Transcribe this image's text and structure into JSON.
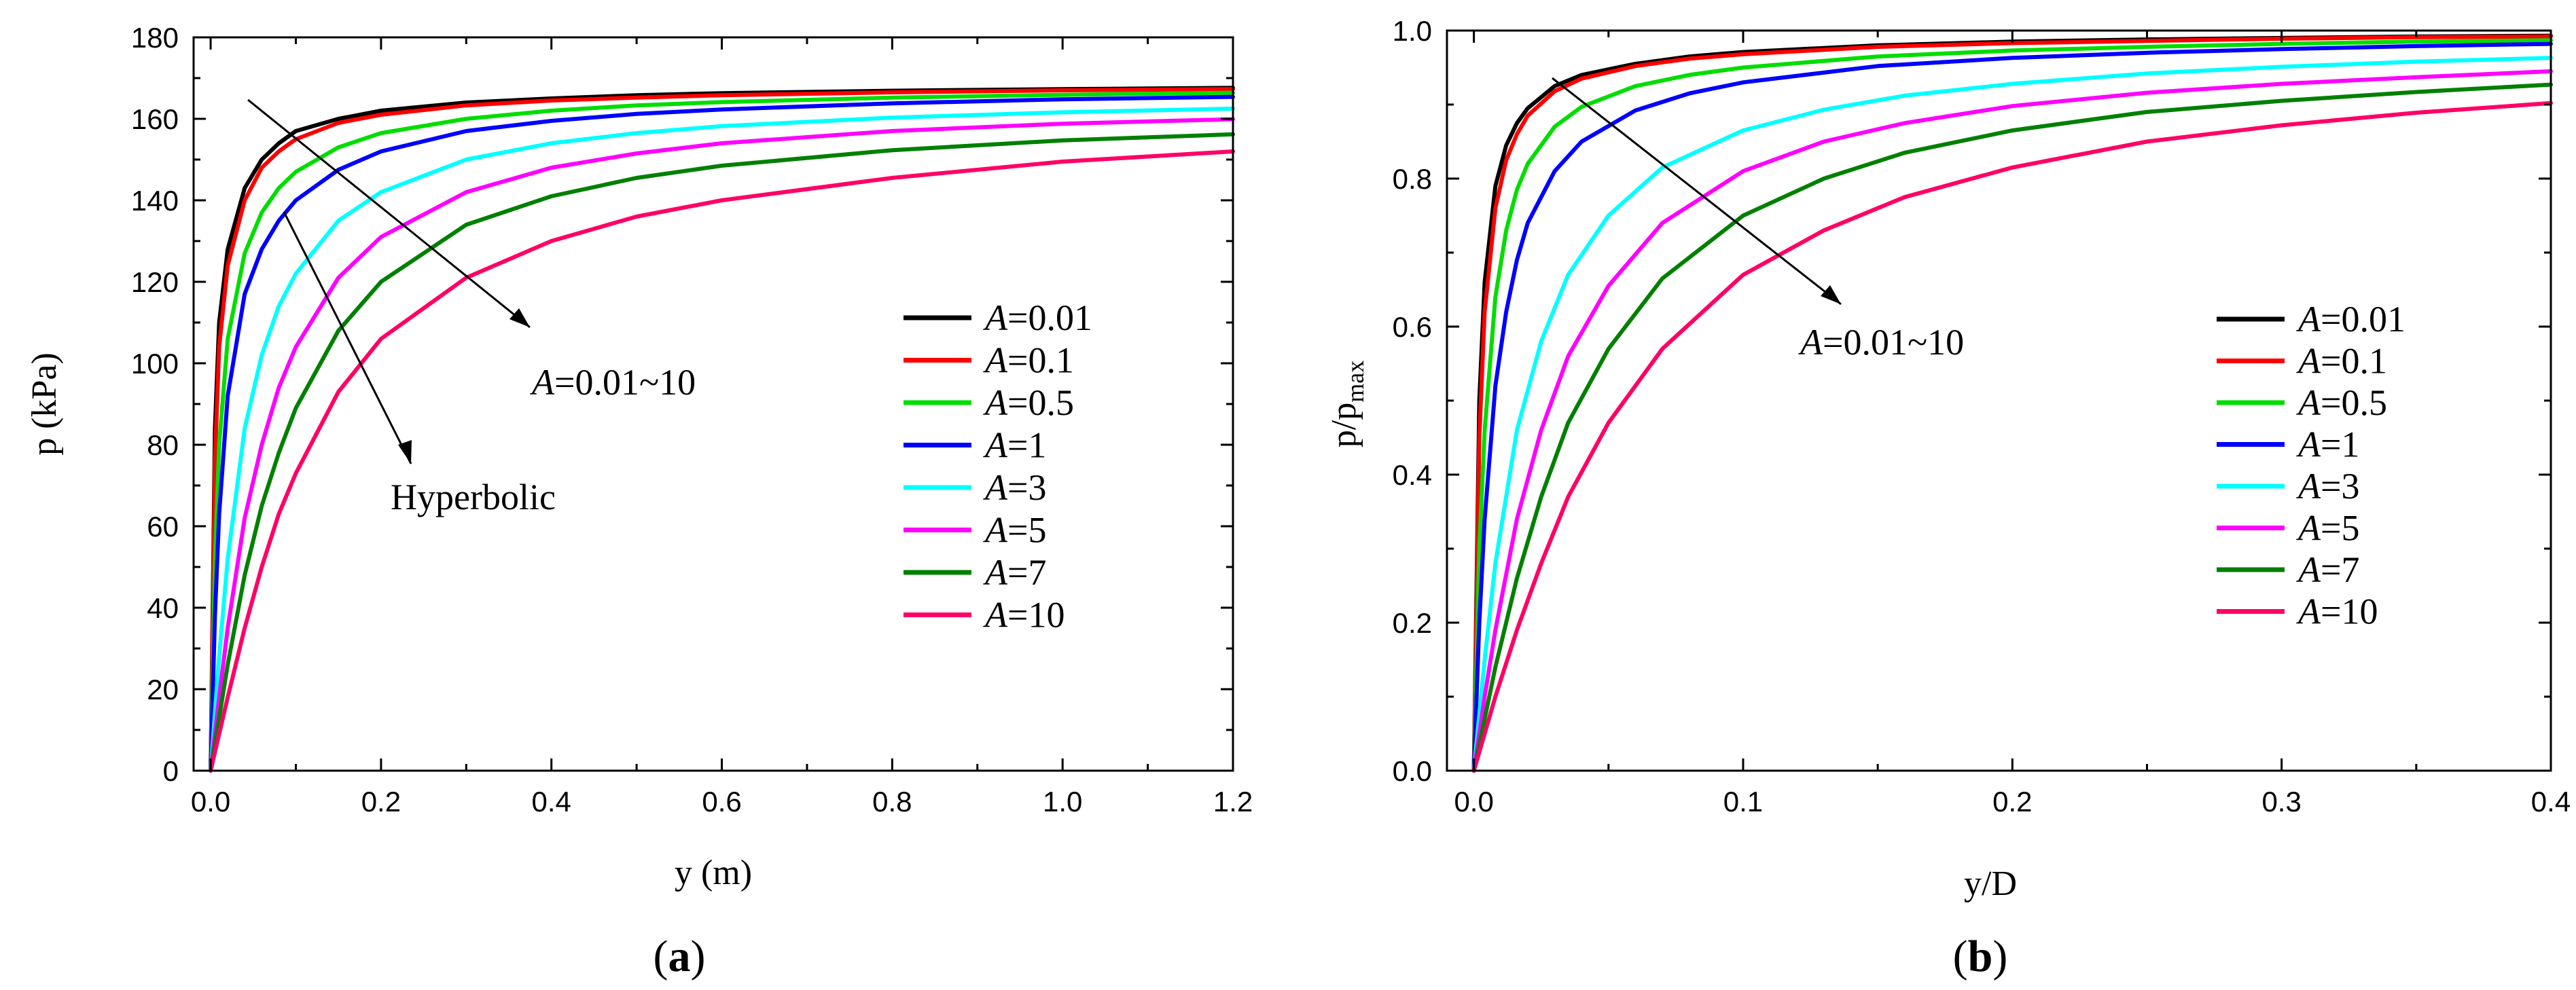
{
  "chart_data": [
    {
      "type": "line",
      "panel_label": "a",
      "xlabel": "y (m)",
      "ylabel": "p (kPa)",
      "xlim": [
        -0.02,
        1.2
      ],
      "ylim": [
        0,
        180
      ],
      "xticks": [
        0.0,
        0.2,
        0.4,
        0.6,
        0.8,
        1.0,
        1.2
      ],
      "xtick_labels": [
        "0.0",
        "0.2",
        "0.4",
        "0.6",
        "0.8",
        "1.0",
        "1.2"
      ],
      "yticks": [
        0,
        20,
        40,
        60,
        80,
        100,
        120,
        140,
        160,
        180
      ],
      "ytick_labels": [
        "0",
        "20",
        "40",
        "60",
        "80",
        "100",
        "120",
        "140",
        "160",
        "180"
      ],
      "legend_position": "right",
      "legend_prefix": "A",
      "series": [
        {
          "name": "=0.01",
          "color": "#000000",
          "x": [
            0,
            0.005,
            0.01,
            0.02,
            0.04,
            0.06,
            0.08,
            0.1,
            0.15,
            0.2,
            0.3,
            0.4,
            0.5,
            0.6,
            0.8,
            1.0,
            1.2
          ],
          "y": [
            0,
            84,
            110,
            128,
            143,
            150,
            154,
            157,
            160,
            162,
            164,
            165,
            165.8,
            166.3,
            166.9,
            167.3,
            167.6
          ]
        },
        {
          "name": "=0.1",
          "color": "#ff0000",
          "x": [
            0,
            0.005,
            0.01,
            0.02,
            0.04,
            0.06,
            0.08,
            0.1,
            0.15,
            0.2,
            0.3,
            0.4,
            0.5,
            0.6,
            0.8,
            1.0,
            1.2
          ],
          "y": [
            0,
            76,
            104,
            124,
            140,
            148,
            152,
            155,
            159,
            161,
            163.3,
            164.5,
            165.2,
            165.8,
            166.5,
            167,
            167.3
          ]
        },
        {
          "name": "=0.5",
          "color": "#00dd00",
          "x": [
            0,
            0.005,
            0.01,
            0.02,
            0.04,
            0.06,
            0.08,
            0.1,
            0.15,
            0.2,
            0.3,
            0.4,
            0.5,
            0.6,
            0.8,
            1.0,
            1.2
          ],
          "y": [
            0,
            52,
            80,
            106,
            127,
            137,
            143,
            147,
            153,
            156.5,
            160,
            162,
            163.3,
            164.1,
            165.2,
            165.9,
            166.4
          ]
        },
        {
          "name": "=1",
          "color": "#0000ff",
          "x": [
            0,
            0.005,
            0.01,
            0.02,
            0.04,
            0.06,
            0.08,
            0.1,
            0.15,
            0.2,
            0.3,
            0.4,
            0.5,
            0.6,
            0.8,
            1.0,
            1.2
          ],
          "y": [
            0,
            38,
            63,
            92,
            117,
            128,
            135,
            140,
            147.5,
            152,
            157,
            159.5,
            161.2,
            162.3,
            163.8,
            164.8,
            165.4
          ]
        },
        {
          "name": "=3",
          "color": "#00ffff",
          "x": [
            0,
            0.01,
            0.02,
            0.04,
            0.06,
            0.08,
            0.1,
            0.15,
            0.2,
            0.3,
            0.4,
            0.5,
            0.6,
            0.8,
            1.0,
            1.2
          ],
          "y": [
            0,
            28,
            52,
            84,
            102,
            114,
            122,
            135,
            142,
            150,
            154,
            156.5,
            158.2,
            160.3,
            161.6,
            162.5
          ]
        },
        {
          "name": "=5",
          "color": "#ff00ff",
          "x": [
            0,
            0.01,
            0.02,
            0.04,
            0.06,
            0.08,
            0.1,
            0.15,
            0.2,
            0.3,
            0.4,
            0.5,
            0.6,
            0.8,
            1.0,
            1.2
          ],
          "y": [
            0,
            18,
            35,
            62,
            80,
            94,
            104,
            121,
            131,
            142,
            148,
            151.5,
            154,
            157,
            158.8,
            159.9
          ]
        },
        {
          "name": "=7",
          "color": "#008000",
          "x": [
            0,
            0.01,
            0.02,
            0.04,
            0.06,
            0.08,
            0.1,
            0.15,
            0.2,
            0.3,
            0.4,
            0.5,
            0.6,
            0.8,
            1.0,
            1.2
          ],
          "y": [
            0,
            13,
            26,
            48,
            65,
            78,
            89,
            108,
            120,
            134,
            141,
            145.5,
            148.5,
            152.3,
            154.7,
            156.2
          ]
        },
        {
          "name": "=10",
          "color": "#ff0066",
          "x": [
            0,
            0.01,
            0.02,
            0.04,
            0.06,
            0.08,
            0.1,
            0.15,
            0.2,
            0.3,
            0.4,
            0.5,
            0.6,
            0.8,
            1.0,
            1.2
          ],
          "y": [
            0,
            9,
            18,
            35,
            50,
            63,
            73,
            93,
            106,
            121,
            130,
            136,
            140,
            145.5,
            149.5,
            152
          ]
        }
      ],
      "annotations": [
        {
          "text": "=0.01~10",
          "italic_prefix": "A"
        },
        {
          "text": "Hyperbolic",
          "italic_prefix": ""
        }
      ]
    },
    {
      "type": "line",
      "panel_label": "b",
      "xlabel": "y/D",
      "ylabel": "p/p",
      "ylabel_subscript": "max",
      "xlim": [
        -0.01,
        0.4
      ],
      "ylim": [
        0,
        1.0
      ],
      "xticks": [
        0.0,
        0.1,
        0.2,
        0.3,
        0.4
      ],
      "xtick_labels": [
        "0.0",
        "0.1",
        "0.2",
        "0.3",
        "0.4"
      ],
      "yticks": [
        0.0,
        0.2,
        0.4,
        0.6,
        0.8,
        1.0
      ],
      "ytick_labels": [
        "0.0",
        "0.2",
        "0.4",
        "0.6",
        "0.8",
        "1.0"
      ],
      "legend_position": "right",
      "legend_prefix": "A",
      "series": [
        {
          "name": "=0.01",
          "color": "#000000",
          "x": [
            0,
            0.002,
            0.004,
            0.008,
            0.012,
            0.016,
            0.02,
            0.03,
            0.04,
            0.06,
            0.08,
            0.1,
            0.15,
            0.2,
            0.25,
            0.3,
            0.35,
            0.4
          ],
          "y": [
            0,
            0.5,
            0.66,
            0.79,
            0.845,
            0.875,
            0.895,
            0.925,
            0.94,
            0.955,
            0.965,
            0.971,
            0.98,
            0.985,
            0.988,
            0.99,
            0.992,
            0.993
          ]
        },
        {
          "name": "=0.1",
          "color": "#ff0000",
          "x": [
            0,
            0.002,
            0.004,
            0.008,
            0.012,
            0.016,
            0.02,
            0.03,
            0.04,
            0.06,
            0.08,
            0.1,
            0.15,
            0.2,
            0.25,
            0.3,
            0.35,
            0.4
          ],
          "y": [
            0,
            0.45,
            0.62,
            0.76,
            0.825,
            0.86,
            0.885,
            0.918,
            0.935,
            0.952,
            0.962,
            0.968,
            0.978,
            0.983,
            0.986,
            0.989,
            0.991,
            0.992
          ]
        },
        {
          "name": "=0.5",
          "color": "#00dd00",
          "x": [
            0,
            0.002,
            0.004,
            0.008,
            0.012,
            0.016,
            0.02,
            0.03,
            0.04,
            0.06,
            0.08,
            0.1,
            0.15,
            0.2,
            0.25,
            0.3,
            0.35,
            0.4
          ],
          "y": [
            0,
            0.3,
            0.46,
            0.64,
            0.73,
            0.785,
            0.82,
            0.87,
            0.897,
            0.925,
            0.94,
            0.95,
            0.965,
            0.973,
            0.978,
            0.982,
            0.985,
            0.987
          ]
        },
        {
          "name": "=1",
          "color": "#0000ff",
          "x": [
            0,
            0.002,
            0.004,
            0.008,
            0.012,
            0.016,
            0.02,
            0.03,
            0.04,
            0.06,
            0.08,
            0.1,
            0.15,
            0.2,
            0.25,
            0.3,
            0.35,
            0.4
          ],
          "y": [
            0,
            0.2,
            0.34,
            0.52,
            0.62,
            0.69,
            0.74,
            0.81,
            0.85,
            0.892,
            0.915,
            0.93,
            0.952,
            0.963,
            0.97,
            0.975,
            0.979,
            0.982
          ]
        },
        {
          "name": "=3",
          "color": "#00ffff",
          "x": [
            0,
            0.004,
            0.008,
            0.016,
            0.025,
            0.035,
            0.05,
            0.07,
            0.1,
            0.13,
            0.16,
            0.2,
            0.25,
            0.3,
            0.35,
            0.4
          ],
          "y": [
            0,
            0.15,
            0.28,
            0.46,
            0.58,
            0.67,
            0.75,
            0.815,
            0.865,
            0.893,
            0.912,
            0.928,
            0.942,
            0.951,
            0.958,
            0.963
          ]
        },
        {
          "name": "=5",
          "color": "#ff00ff",
          "x": [
            0,
            0.004,
            0.008,
            0.016,
            0.025,
            0.035,
            0.05,
            0.07,
            0.1,
            0.13,
            0.16,
            0.2,
            0.25,
            0.3,
            0.35,
            0.4
          ],
          "y": [
            0,
            0.1,
            0.19,
            0.34,
            0.46,
            0.56,
            0.655,
            0.74,
            0.81,
            0.85,
            0.875,
            0.898,
            0.916,
            0.928,
            0.937,
            0.945
          ]
        },
        {
          "name": "=7",
          "color": "#008000",
          "x": [
            0,
            0.004,
            0.008,
            0.016,
            0.025,
            0.035,
            0.05,
            0.07,
            0.1,
            0.13,
            0.16,
            0.2,
            0.25,
            0.3,
            0.35,
            0.4
          ],
          "y": [
            0,
            0.07,
            0.14,
            0.26,
            0.37,
            0.47,
            0.57,
            0.665,
            0.75,
            0.8,
            0.835,
            0.865,
            0.89,
            0.905,
            0.917,
            0.927
          ]
        },
        {
          "name": "=10",
          "color": "#ff0066",
          "x": [
            0,
            0.004,
            0.008,
            0.016,
            0.025,
            0.035,
            0.05,
            0.07,
            0.1,
            0.13,
            0.16,
            0.2,
            0.25,
            0.3,
            0.35,
            0.4
          ],
          "y": [
            0,
            0.05,
            0.1,
            0.19,
            0.28,
            0.37,
            0.47,
            0.57,
            0.67,
            0.73,
            0.775,
            0.815,
            0.85,
            0.872,
            0.889,
            0.902
          ]
        }
      ],
      "annotations": [
        {
          "text": "=0.01~10",
          "italic_prefix": "A"
        }
      ]
    }
  ]
}
